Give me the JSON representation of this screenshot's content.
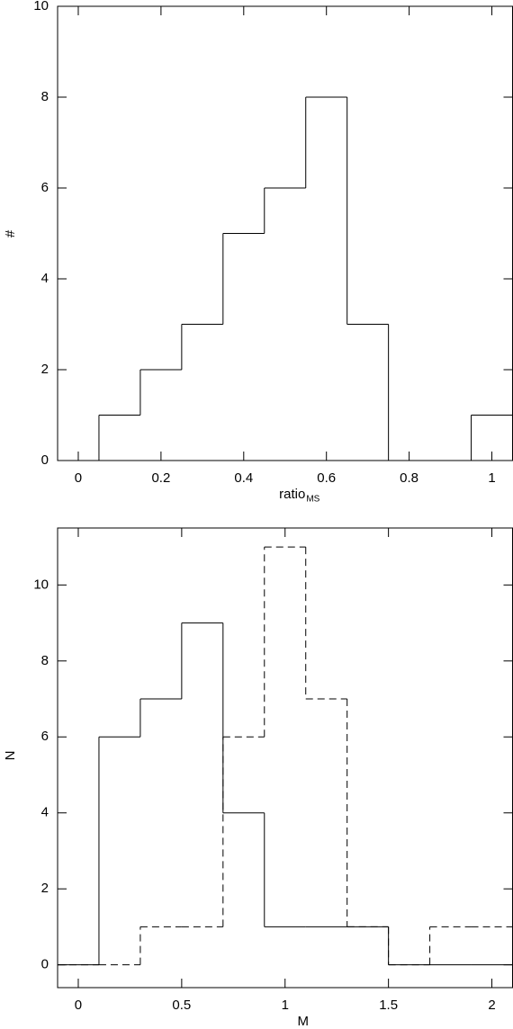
{
  "chart_data": [
    {
      "type": "histogram",
      "xlabel": "ratio",
      "xlabel_sub": "MS",
      "ylabel": "#",
      "bins": [
        -0.05,
        0.05,
        0.15,
        0.25,
        0.35,
        0.45,
        0.55,
        0.65,
        0.75,
        0.85,
        0.95,
        1.05
      ],
      "series": [
        {
          "color": "#000000",
          "dash": "solid",
          "values": [
            0,
            1,
            2,
            3,
            5,
            6,
            8,
            3,
            0,
            0,
            1
          ]
        }
      ],
      "xlim": [
        -0.05,
        1.05
      ],
      "xticks": [
        0,
        0.2,
        0.4,
        0.6,
        0.8,
        1
      ],
      "ylim": [
        0,
        10
      ],
      "yticks": [
        0,
        2,
        4,
        6,
        8,
        10
      ]
    },
    {
      "type": "histogram",
      "xlabel": "M",
      "ylabel": "N",
      "bins": [
        -0.1,
        0.1,
        0.3,
        0.5,
        0.7,
        0.9,
        1.1,
        1.3,
        1.5,
        1.7,
        1.9,
        2.1
      ],
      "series": [
        {
          "color": "#000000",
          "dash": "solid",
          "values": [
            0,
            6,
            7,
            9,
            4,
            1,
            1,
            1,
            0,
            0,
            0
          ]
        },
        {
          "color": "#000000",
          "dash": "dashed",
          "values": [
            0,
            0,
            1,
            1,
            6,
            11,
            7,
            1,
            0,
            1,
            1
          ]
        }
      ],
      "xlim": [
        -0.1,
        2.1
      ],
      "xticks": [
        0,
        0.5,
        1,
        1.5,
        2
      ],
      "ylim": [
        -0.6,
        11.5
      ],
      "yticks": [
        0,
        2,
        4,
        6,
        8,
        10
      ]
    }
  ]
}
